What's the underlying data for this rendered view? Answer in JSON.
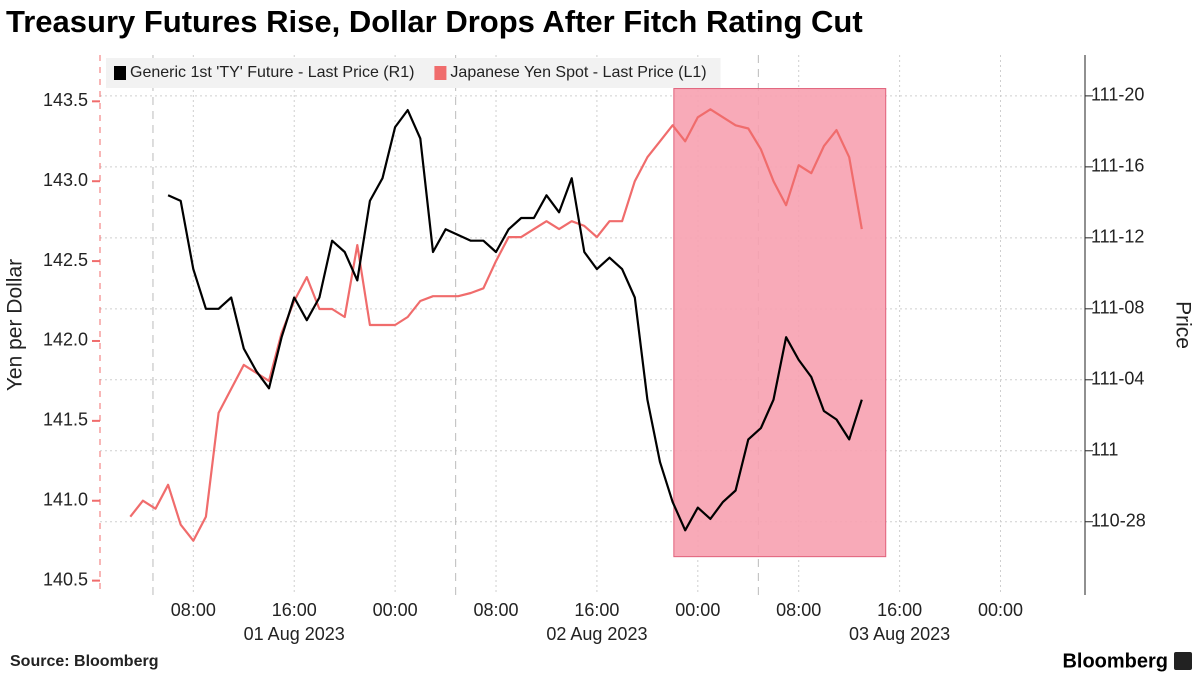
{
  "chart_data": {
    "type": "line",
    "title": "Treasury Futures Rise, Dollar Drops After Fitch Rating Cut",
    "ylabel": "Yen per Dollar",
    "y2label": "Price",
    "source": "Source: Bloomberg",
    "brand": "Bloomberg",
    "x": [
      3,
      4,
      5,
      6,
      7,
      8,
      9,
      10,
      11,
      12,
      13,
      14,
      15,
      16,
      17,
      18,
      19,
      20,
      21,
      22,
      23,
      24,
      25,
      26,
      27,
      28,
      29,
      30,
      31,
      32,
      33,
      34,
      35,
      36,
      37,
      38,
      39,
      40,
      41,
      42,
      43,
      44,
      45,
      46,
      47,
      48,
      49,
      50,
      51,
      52,
      53,
      54,
      55,
      56,
      57,
      58,
      59,
      60,
      61
    ],
    "series": [
      {
        "name": "Generic 1st 'TY' Future - Last Price (R1)",
        "color": "#000000",
        "axis": "y2",
        "values": [
          null,
          null,
          null,
          111.45,
          111.44,
          111.32,
          111.25,
          111.25,
          111.27,
          111.18,
          111.14,
          111.11,
          111.2,
          111.27,
          111.23,
          111.27,
          111.37,
          111.35,
          111.3,
          111.44,
          111.48,
          111.57,
          111.6,
          111.55,
          111.35,
          111.39,
          111.38,
          111.37,
          111.37,
          111.35,
          111.39,
          111.41,
          111.41,
          111.45,
          111.42,
          111.48,
          111.35,
          111.32,
          111.34,
          111.32,
          111.27,
          111.09,
          110.98,
          110.91,
          110.86,
          110.9,
          110.88,
          110.91,
          110.93,
          111.02,
          111.04,
          111.09,
          111.2,
          111.16,
          111.13,
          111.07,
          111.055,
          111.02,
          111.09
        ]
      },
      {
        "name": "Japanese Yen Spot - Last Price (L1)",
        "color": "#f06c6c",
        "values": [
          140.9,
          141.0,
          140.95,
          141.1,
          140.85,
          140.75,
          140.9,
          141.55,
          141.7,
          141.85,
          141.8,
          141.75,
          142.05,
          142.25,
          142.4,
          142.2,
          142.2,
          142.15,
          142.6,
          142.1,
          142.1,
          142.1,
          142.15,
          142.25,
          142.28,
          142.28,
          142.28,
          142.3,
          142.33,
          142.5,
          142.65,
          142.65,
          142.7,
          142.75,
          142.7,
          142.75,
          142.72,
          142.65,
          142.75,
          142.75,
          143.0,
          143.15,
          143.25,
          143.35,
          143.25,
          143.4,
          143.45,
          143.4,
          143.35,
          143.33,
          143.2,
          143.0,
          142.85,
          143.1,
          143.05,
          143.22,
          143.32,
          143.15,
          142.7
        ]
      }
    ],
    "xlim": [
      0.6,
      78.7
    ],
    "xticks": [
      {
        "value": 8,
        "label": "08:00"
      },
      {
        "value": 16,
        "label": "16:00"
      },
      {
        "value": 24,
        "label": "00:00"
      },
      {
        "value": 32,
        "label": "08:00"
      },
      {
        "value": 40,
        "label": "16:00"
      },
      {
        "value": 48,
        "label": "00:00"
      },
      {
        "value": 56,
        "label": "08:00"
      },
      {
        "value": 64,
        "label": "16:00"
      },
      {
        "value": 72,
        "label": "00:00"
      }
    ],
    "x_date_labels": [
      {
        "value": 16,
        "label": "01 Aug 2023"
      },
      {
        "value": 40,
        "label": "02 Aug 2023"
      },
      {
        "value": 64,
        "label": "03 Aug 2023"
      }
    ],
    "day_lines": [
      4.8,
      28.8,
      52.8
    ],
    "ylim": [
      140.41,
      143.79
    ],
    "yticks": [
      140.5,
      {
        "value": 141,
        "label": "141.0"
      },
      141.5,
      {
        "value": 142,
        "label": "142.0"
      },
      142.5,
      {
        "value": 143,
        "label": "143.0"
      },
      143.5
    ],
    "y2lim": [
      110.746,
      111.697
    ],
    "y2ticks": [
      {
        "value": 110.875,
        "label": "110-28"
      },
      111,
      {
        "value": 111.125,
        "label": "111-04"
      },
      {
        "value": 111.25,
        "label": "111-08"
      },
      {
        "value": 111.375,
        "label": "111-12"
      },
      {
        "value": 111.5,
        "label": "111-16"
      },
      {
        "value": 111.625,
        "label": "111-20"
      }
    ],
    "highlight": {
      "x": [
        46.1,
        62.9
      ],
      "y": [
        140.65,
        143.58
      ],
      "color": "#f7a1b0"
    },
    "grid": true,
    "legend": "top-left"
  }
}
